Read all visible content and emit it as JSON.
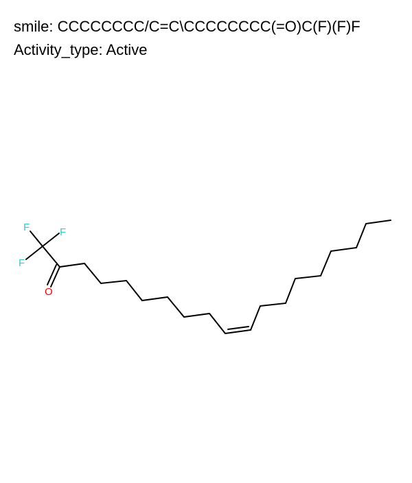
{
  "smile": {
    "label": "smile:",
    "value": "CCCCCCCC/C=C\\CCCCCCCC(=O)C(F)(F)F"
  },
  "activity": {
    "label": "Activity_type:",
    "value": "Active"
  },
  "atoms": {
    "fluorine": "F",
    "oxygen": "O"
  },
  "colors": {
    "fluorine": "#33CCCC",
    "oxygen": "#FF0000",
    "bond": "#000000"
  }
}
